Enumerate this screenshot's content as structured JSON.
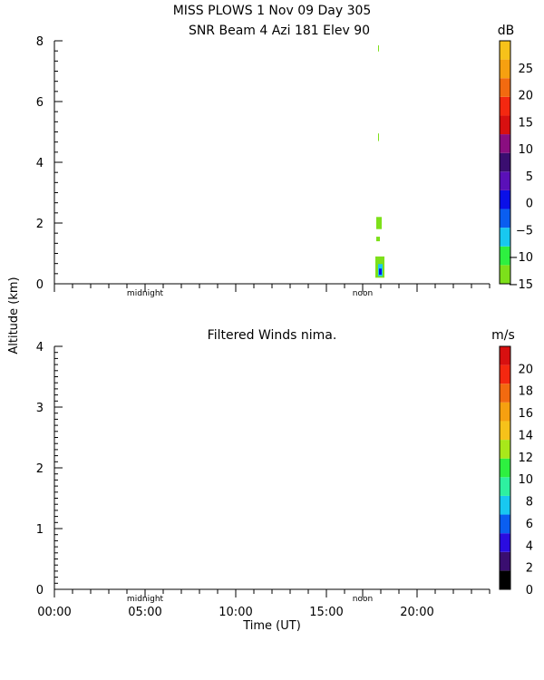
{
  "header": {
    "line1": "MISS PLOWS    1 Nov 09 Day 305",
    "line2": "SNR Beam 4 Azi 181 Elev 90"
  },
  "ylabel": "Altitude (km)",
  "xlabel": "Time (UT)",
  "time_ticks": [
    "00:00",
    "05:00",
    "10:00",
    "15:00",
    "20:00"
  ],
  "markers": {
    "midnight": "midnight",
    "noon": "noon"
  },
  "chart_data": [
    {
      "type": "heatmap",
      "title": "SNR Beam 4 Azi 181 Elev 90",
      "ylim": [
        0,
        8
      ],
      "xlim_hours": [
        0,
        24
      ],
      "yticks": [
        0,
        2,
        4,
        6,
        8
      ],
      "colorbar": {
        "unit": "dB",
        "range": [
          -15,
          30
        ],
        "tick_values": [
          -15,
          -10,
          -5,
          0,
          5,
          10,
          15,
          20,
          25
        ],
        "tick_labels": [
          "−15",
          "−10",
          "−5",
          "0",
          "5",
          "10",
          "15",
          "20",
          "25"
        ],
        "colors": [
          "#7de01a",
          "#2ef040",
          "#18c8f0",
          "#0a5ef0",
          "#0a10e8",
          "#5a10b8",
          "#3a0e70",
          "#8a0e80",
          "#d81010",
          "#f42810",
          "#f26a10",
          "#f6a010",
          "#f6c21a"
        ]
      },
      "cells": [
        {
          "t0": 17.7,
          "t1": 18.2,
          "h0": 0.2,
          "h1": 0.9,
          "snr": -13
        },
        {
          "t0": 17.85,
          "t1": 18.1,
          "h0": 0.25,
          "h1": 0.65,
          "snr": -5
        },
        {
          "t0": 17.9,
          "t1": 18.05,
          "h0": 0.3,
          "h1": 0.5,
          "snr": 1
        },
        {
          "t0": 17.75,
          "t1": 17.95,
          "h0": 1.4,
          "h1": 1.55,
          "snr": -14
        },
        {
          "t0": 17.75,
          "t1": 18.05,
          "h0": 1.8,
          "h1": 2.2,
          "snr": -14
        },
        {
          "t0": 17.85,
          "t1": 17.9,
          "h0": 4.7,
          "h1": 4.95,
          "snr": -14
        },
        {
          "t0": 17.85,
          "t1": 17.9,
          "h0": 7.65,
          "h1": 7.85,
          "snr": -14
        }
      ]
    },
    {
      "type": "heatmap",
      "title": "Filtered Winds nima.",
      "ylim": [
        0,
        4
      ],
      "xlim_hours": [
        0,
        24
      ],
      "yticks": [
        0,
        1,
        2,
        3,
        4
      ],
      "colorbar": {
        "unit": "m/s",
        "range": [
          0,
          22
        ],
        "tick_values": [
          0,
          2,
          4,
          6,
          8,
          10,
          12,
          14,
          16,
          18,
          20
        ],
        "tick_labels": [
          "0",
          "2",
          "4",
          "6",
          "8",
          "10",
          "12",
          "14",
          "16",
          "18",
          "20"
        ],
        "colors": [
          "#000000",
          "#3a0e70",
          "#2a0ce0",
          "#0a5ef0",
          "#18c8f0",
          "#2ef0a0",
          "#2ef040",
          "#a8e81a",
          "#f6c21a",
          "#f6a010",
          "#f26a10",
          "#f42810",
          "#d81010"
        ]
      },
      "cells": []
    }
  ]
}
